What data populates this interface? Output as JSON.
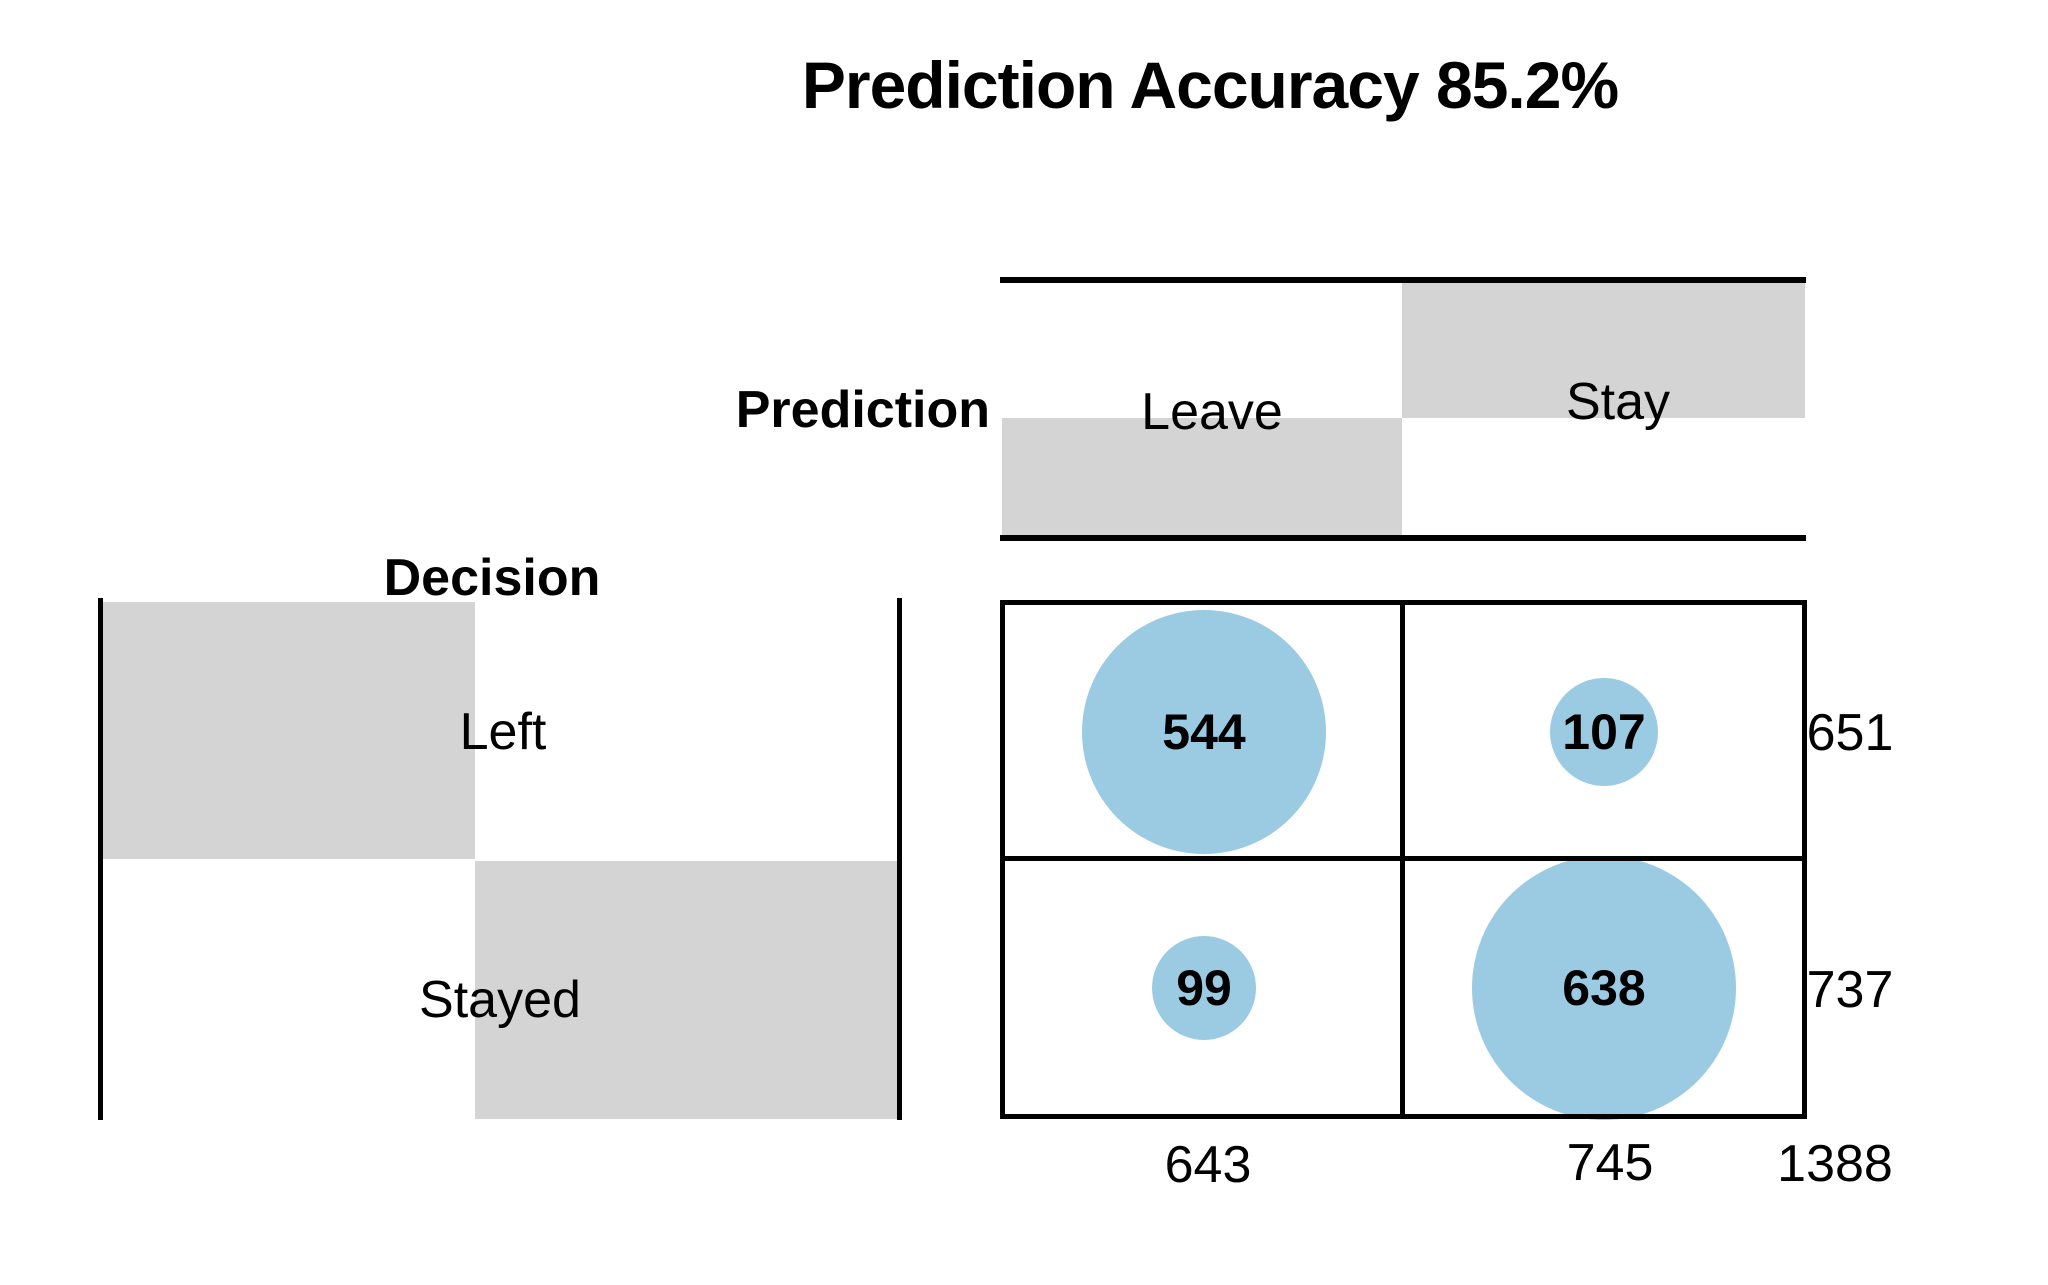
{
  "chart_data": {
    "type": "table",
    "subtype": "balloon-confusion-matrix",
    "title": "Prediction Accuracy 85.2%",
    "accuracy_percent": 85.2,
    "x_axis_label": "Prediction",
    "y_axis_label": "Decision",
    "x_categories": [
      "Leave",
      "Stay"
    ],
    "y_categories": [
      "Left",
      "Stayed"
    ],
    "cells": [
      [
        544,
        107
      ],
      [
        99,
        638
      ]
    ],
    "row_totals": [
      651,
      737
    ],
    "col_totals": [
      643,
      745
    ],
    "grand_total": 1388,
    "colors": {
      "bubble": "#9ACBE3",
      "shade": "#D4D4D4",
      "line": "#000000",
      "text": "#000000"
    },
    "layout": {
      "legend": "none",
      "grid": false,
      "bubble_area": "proportional to value"
    }
  }
}
